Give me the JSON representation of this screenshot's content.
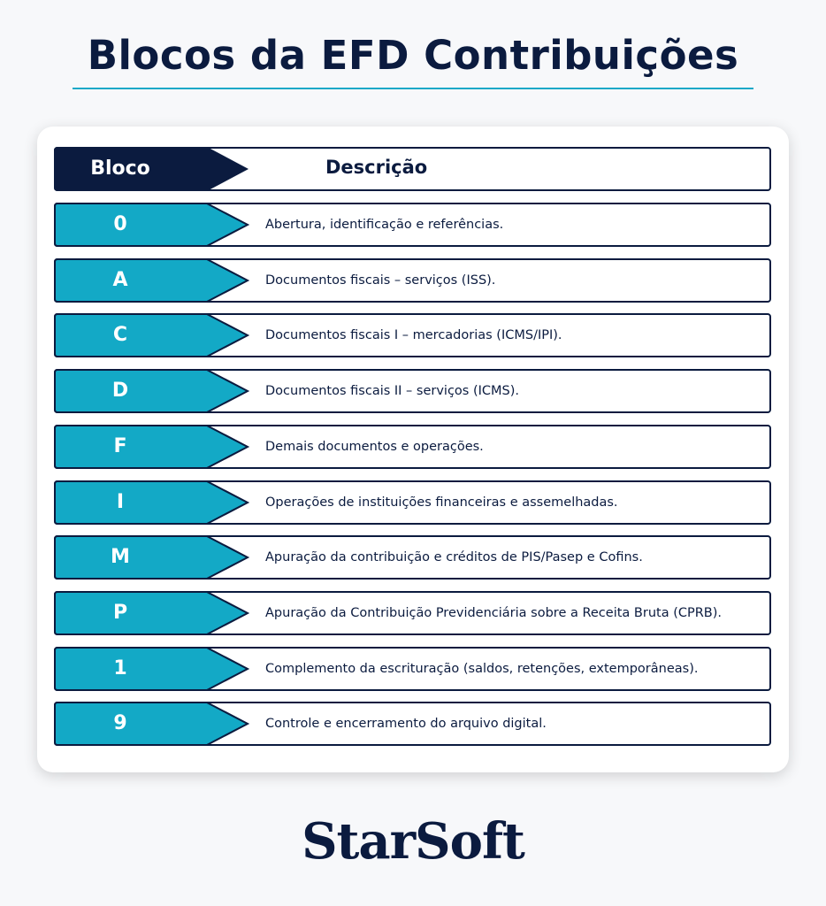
{
  "title": "Blocos da EFD Contribuições",
  "colors": {
    "navy": "#0b1b3f",
    "teal": "#13a9c6",
    "accent_rule": "#1aa8c8"
  },
  "table": {
    "header": {
      "code": "Bloco",
      "description": "Descrição"
    },
    "rows": [
      {
        "code": "0",
        "description": "Abertura, identificação e referências."
      },
      {
        "code": "A",
        "description": "Documentos fiscais – serviços (ISS)."
      },
      {
        "code": "C",
        "description": "Documentos fiscais I – mercadorias (ICMS/IPI)."
      },
      {
        "code": "D",
        "description": "Documentos fiscais II – serviços (ICMS)."
      },
      {
        "code": "F",
        "description": "Demais documentos e operações."
      },
      {
        "code": "I",
        "description": "Operações de instituições financeiras e assemelhadas."
      },
      {
        "code": "M",
        "description": "Apuração da contribuição e créditos de PIS/Pasep e Cofins."
      },
      {
        "code": "P",
        "description": "Apuração da Contribuição Previdenciária sobre a Receita Bruta (CPRB)."
      },
      {
        "code": "1",
        "description": "Complemento da escrituração (saldos, retenções, extemporâneas)."
      },
      {
        "code": "9",
        "description": "Controle e encerramento do arquivo digital."
      }
    ]
  },
  "logo": "StarSoft"
}
